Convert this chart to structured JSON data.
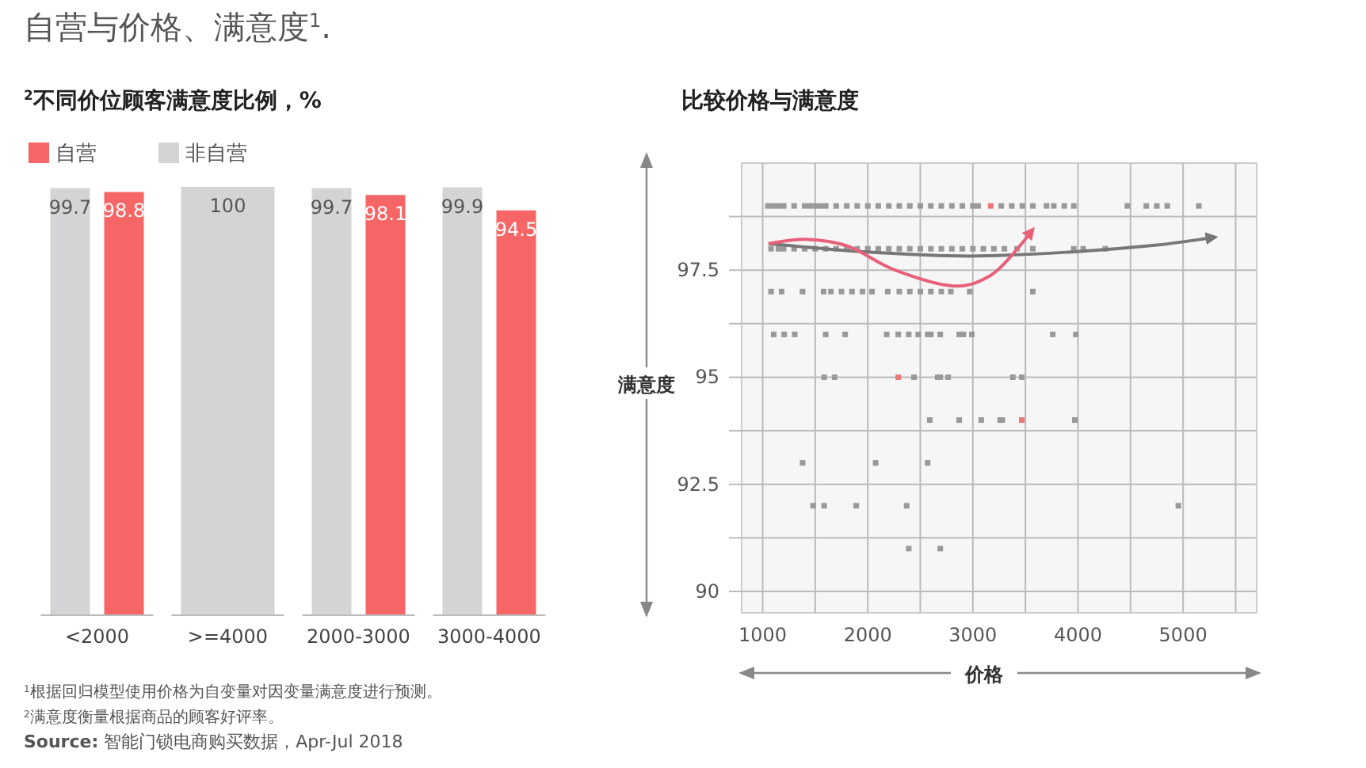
{
  "chart_data": [
    {
      "type": "bar",
      "title": "自营与价格、满意度$^{1}$.",
      "subtitle": "$^{2}$不同价位顾客满意度比例，%",
      "categories": [
        "<2000",
        ">=4000",
        "2000-3000",
        "3000-4000"
      ],
      "series": [
        {
          "name": "非自营",
          "color": "#d4d4d6",
          "values": [
            99.7,
            100,
            99.7,
            99.9
          ]
        },
        {
          "name": "自营",
          "color": "#f76666",
          "values": [
            98.8,
            null,
            98.1,
            94.5
          ]
        }
      ],
      "data_labels": true,
      "legend": "top left",
      "annotations": [
        "$^{1}$根据回归模型使用价格为自变量对因变量满意度进行预测。",
        "$^{2}$满意度衡量根据商品的顾客好评率。",
        "**Source:** 智能门锁电商购买数据，Apr-Jul 2018"
      ]
    },
    {
      "type": "scatter",
      "title": "比较价格与满意度",
      "xlabel": "价格",
      "ylabel": "满意度",
      "xlim": [
        800,
        5700
      ],
      "ylim": [
        89.5,
        100
      ],
      "xticks": [
        1000,
        {
          "value": 1500,
          "label": null
        },
        2000,
        {
          "value": 2500,
          "label": null
        },
        3000,
        {
          "value": 3500,
          "label": null
        },
        4000,
        {
          "value": 4500,
          "label": null
        },
        5000,
        {
          "value": 5500,
          "label": null
        }
      ],
      "yticks": [
        90,
        {
          "value": 91.25,
          "label": null
        },
        92.5,
        {
          "value": 93.75,
          "label": null
        },
        95,
        {
          "value": 96.25,
          "label": null
        },
        97.5,
        {
          "value": 98.75,
          "label": null
        }
      ],
      "grid": true,
      "marker": "square",
      "series": [
        {
          "type": "scatter",
          "color": "#999999",
          "x": [
            1050,
            1100,
            1150,
            1200,
            1300,
            1400,
            1450,
            1500,
            1550,
            1600,
            1700,
            1800,
            1900,
            2000,
            2100,
            2200,
            2300,
            2400,
            2500,
            2600,
            2700,
            2800,
            2900,
            3000,
            3050,
            3270,
            3370,
            3470,
            3570,
            3700,
            3770,
            3870,
            3960,
            4470,
            4650,
            4750,
            4850,
            5150,
            1080,
            1150,
            1200,
            1300,
            1400,
            1500,
            1600,
            1700,
            1800,
            1900,
            2000,
            2100,
            2200,
            2300,
            2400,
            2500,
            2600,
            2700,
            2800,
            2900,
            3000,
            3100,
            3200,
            3300,
            3420,
            3570,
            3960,
            4050,
            4260,
            1080,
            1180,
            1380,
            1580,
            1650,
            1750,
            1850,
            1950,
            2040,
            2190,
            2300,
            2400,
            2500,
            2600,
            2700,
            2790,
            2970,
            3570,
            1105,
            1205,
            1305,
            1600,
            1785,
            2180,
            2290,
            2390,
            2480,
            2570,
            2600,
            2690,
            2870,
            2910,
            2990,
            3760,
            3980,
            1585,
            1685,
            2440,
            2665,
            2690,
            2765,
            3380,
            3465,
            2590,
            2870,
            3080,
            3260,
            3280,
            3970,
            1380,
            2075,
            2570,
            1480,
            1585,
            1890,
            2370,
            4955,
            2390,
            2690
          ],
          "values": [
            99,
            99,
            99,
            99,
            99,
            99,
            99,
            99,
            99,
            99,
            99,
            99,
            99,
            99,
            99,
            99,
            99,
            99,
            99,
            99,
            99,
            99,
            99,
            99,
            99,
            99,
            99,
            99,
            99,
            99,
            99,
            99,
            99,
            99,
            99,
            99,
            99,
            99,
            98,
            98,
            98,
            98,
            98,
            98,
            98,
            98,
            98,
            98,
            98,
            98,
            98,
            98,
            98,
            98,
            98,
            98,
            98,
            98,
            98,
            98,
            98,
            98,
            98,
            98,
            98,
            98,
            98,
            97,
            97,
            97,
            97,
            97,
            97,
            97,
            97,
            97,
            97,
            97,
            97,
            97,
            97,
            97,
            97,
            97,
            97,
            96,
            96,
            96,
            96,
            96,
            96,
            96,
            96,
            96,
            96,
            96,
            96,
            96,
            96,
            96,
            96,
            96,
            95,
            95,
            95,
            95,
            95,
            95,
            95,
            95,
            94,
            94,
            94,
            94,
            94,
            94,
            93,
            93,
            93,
            92,
            92,
            92,
            92,
            92,
            91,
            91
          ]
        },
        {
          "type": "scatter",
          "color": "#e87878",
          "x": [
            3170,
            2290,
            3465
          ],
          "values": [
            99,
            95,
            94
          ]
        },
        {
          "type": "line",
          "marker": "none",
          "color": "#777777",
          "x": [
            1055,
            1960,
            2970,
            3970,
            4730,
            5305
          ],
          "values": [
            98.12,
            97.93,
            97.83,
            97.93,
            98.08,
            98.27
          ]
        },
        {
          "type": "line",
          "marker": "none",
          "color": "#e8607a",
          "x": [
            1055,
            1410,
            1810,
            2260,
            2815,
            3170,
            3420,
            3570
          ],
          "values": [
            98.12,
            98.22,
            98.06,
            97.5,
            97.13,
            97.38,
            97.99,
            98.45
          ]
        }
      ]
    }
  ]
}
